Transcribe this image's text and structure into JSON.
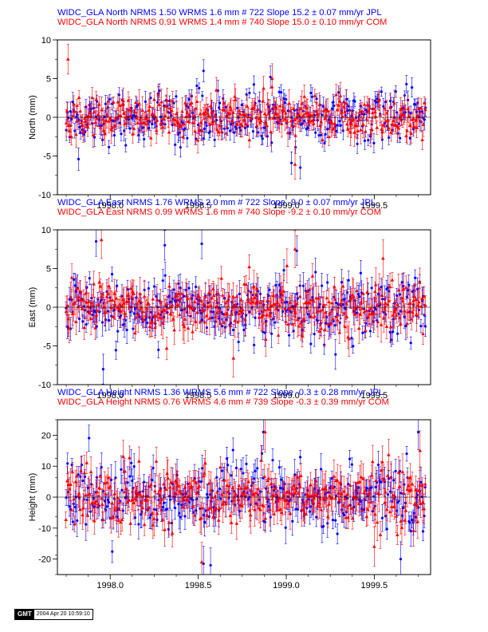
{
  "colors": {
    "jpl": "#0000ff",
    "com": "#ff0000",
    "axis": "#000000"
  },
  "stamp": {
    "logo": "GMT",
    "timestamp": "2004 Apr 20 10:59:10"
  },
  "chart_data": [
    {
      "type": "scatter",
      "component": "north",
      "ylabel": "North (mm)",
      "ylim": [
        -10,
        10
      ],
      "yticks": [
        -10,
        -5,
        0,
        5,
        10
      ],
      "xlim": [
        1997.7,
        1999.82
      ],
      "xticks": [
        "1998.0",
        "1998.5",
        "1999.0",
        "1999.5"
      ],
      "grid": false,
      "legend": [
        {
          "text": "WIDC_GLA North NRMS 1.50 WRMS  1.6 mm # 722 Slope   15.2 ±  0.07 mm/yr JPL",
          "color": "#0000ff"
        },
        {
          "text": "WIDC_GLA North NRMS 0.91 WRMS  1.4 mm # 740 Slope   15.0 ±  0.10 mm/yr COM",
          "color": "#ff0000"
        }
      ],
      "series": [
        {
          "name": "JPL",
          "color": "#0000ff",
          "marker": "circle",
          "count": 722,
          "wrms": 1.6,
          "err": 0.9,
          "outliers": [
            [
              1998.53,
              6.0
            ],
            [
              1998.91,
              5.2
            ],
            [
              1999.08,
              -6.5
            ],
            [
              1999.03,
              -5.9
            ],
            [
              1997.82,
              -5.4
            ]
          ]
        },
        {
          "name": "COM",
          "color": "#ff0000",
          "marker": "triangle",
          "count": 740,
          "wrms": 1.4,
          "err": 1.2,
          "outliers": [
            [
              1998.92,
              5.0
            ],
            [
              1999.05,
              -6.1
            ],
            [
              1997.76,
              7.5
            ]
          ]
        }
      ]
    },
    {
      "type": "scatter",
      "component": "east",
      "ylabel": "East (mm)",
      "ylim": [
        -10,
        10
      ],
      "yticks": [
        -10,
        -5,
        0,
        5,
        10
      ],
      "xlim": [
        1997.7,
        1999.82
      ],
      "xticks": [
        "1998.0",
        "1998.5",
        "1999.0",
        "1999.5"
      ],
      "grid": false,
      "legend": [
        {
          "text": "WIDC_GLA East NRMS 1.76 WRMS  2.0 mm # 722 Slope   -9.0 ±  0.07 mm/yr JPL",
          "color": "#0000ff"
        },
        {
          "text": "WIDC_GLA East NRMS 0.99 WRMS  1.6 mm # 740 Slope   -9.2 ±  0.10 mm/yr COM",
          "color": "#ff0000"
        }
      ],
      "series": [
        {
          "name": "JPL",
          "color": "#0000ff",
          "marker": "circle",
          "count": 722,
          "wrms": 2.0,
          "err": 1.2,
          "outliers": [
            [
              1997.92,
              8.5
            ],
            [
              1998.52,
              8.2
            ],
            [
              1998.31,
              8.0
            ],
            [
              1999.06,
              7.3
            ],
            [
              1997.96,
              -8.0
            ],
            [
              1999.28,
              -6.1
            ]
          ]
        },
        {
          "name": "COM",
          "color": "#ff0000",
          "marker": "triangle",
          "count": 740,
          "wrms": 1.6,
          "err": 1.5,
          "outliers": [
            [
              1997.95,
              8.7
            ],
            [
              1999.05,
              7.5
            ],
            [
              1998.7,
              -6.6
            ],
            [
              1999.55,
              6.3
            ]
          ]
        }
      ]
    },
    {
      "type": "scatter",
      "component": "height",
      "ylabel": "Height (mm)",
      "ylim": [
        -25,
        25
      ],
      "yticks": [
        -20,
        -10,
        0,
        10,
        20
      ],
      "xlim": [
        1997.7,
        1999.82
      ],
      "xticks": [
        "1998.0",
        "1998.5",
        "1999.0",
        "1999.5"
      ],
      "grid": false,
      "legend": [
        {
          "text": "WIDC_GLA Height NRMS 1.36 WRMS  5.6 mm # 722 Slope   -0.3 ±  0.28 mm/yr JPL",
          "color": "#0000ff"
        },
        {
          "text": "WIDC_GLA Height NRMS 0.76 WRMS  4.6 mm # 739 Slope   -0.3 ±  0.39 mm/yr COM",
          "color": "#ff0000"
        }
      ],
      "series": [
        {
          "name": "JPL",
          "color": "#0000ff",
          "marker": "circle",
          "count": 722,
          "wrms": 5.6,
          "err": 3.5,
          "outliers": [
            [
              1998.87,
              21.0
            ],
            [
              1998.57,
              -22.0
            ],
            [
              1999.75,
              21.0
            ],
            [
              1999.65,
              -20.0
            ],
            [
              1998.53,
              -21.5
            ]
          ]
        },
        {
          "name": "COM",
          "color": "#ff0000",
          "marker": "triangle",
          "count": 739,
          "wrms": 4.6,
          "err": 4.0,
          "outliers": [
            [
              1998.52,
              -21.0
            ],
            [
              1998.88,
              21.0
            ],
            [
              1999.76,
              15.0
            ],
            [
              1999.5,
              -16.0
            ]
          ]
        }
      ]
    }
  ]
}
